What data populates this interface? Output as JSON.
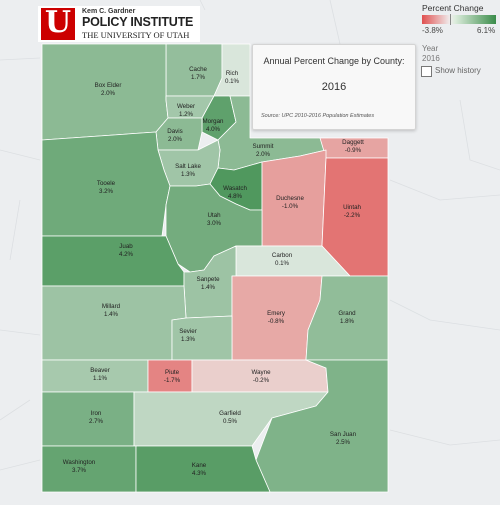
{
  "logo": {
    "line1": "Kem C. Gardner",
    "line2": "POLICY INSTITUTE",
    "line3": "THE UNIVERSITY OF UTAH",
    "emblem_letter": "U",
    "brand_color": "#cc0000"
  },
  "info_box": {
    "title": "Annual Percent Change by County:",
    "year": "2016",
    "source": "Source: UPC 2010-2016 Population Estimates"
  },
  "legend": {
    "title": "Percent Change",
    "min_label": "-3.8%",
    "max_label": "6.1%",
    "min_color": "#e05050",
    "max_color": "#3a8c4a",
    "year_label": "Year",
    "year_value": "2016",
    "show_history_label": "Show history"
  },
  "chart_data": {
    "type": "choropleth",
    "title": "Annual Percent Change by County:",
    "subtitle": "2016",
    "range": [
      -3.8,
      6.1
    ],
    "regions": [
      {
        "name": "Cache",
        "value": "1.7%",
        "v": 1.7
      },
      {
        "name": "Rich",
        "value": "0.1%",
        "v": 0.1
      },
      {
        "name": "Box Elder",
        "value": "2.0%",
        "v": 2.0
      },
      {
        "name": "Weber",
        "value": "1.2%",
        "v": 1.2
      },
      {
        "name": "Morgan",
        "value": "4.0%",
        "v": 4.0
      },
      {
        "name": "Davis",
        "value": "2.0%",
        "v": 2.0
      },
      {
        "name": "Summit",
        "value": "2.0%",
        "v": 2.0
      },
      {
        "name": "Daggett",
        "value": "-0.9%",
        "v": -0.9
      },
      {
        "name": "Salt Lake",
        "value": "1.3%",
        "v": 1.3
      },
      {
        "name": "Tooele",
        "value": "3.2%",
        "v": 3.2
      },
      {
        "name": "Wasatch",
        "value": "4.8%",
        "v": 4.8
      },
      {
        "name": "Duchesne",
        "value": "-1.0%",
        "v": -1.0
      },
      {
        "name": "Uintah",
        "value": "-2.2%",
        "v": -2.2
      },
      {
        "name": "Utah",
        "value": "3.0%",
        "v": 3.0
      },
      {
        "name": "Juab",
        "value": "4.2%",
        "v": 4.2
      },
      {
        "name": "Carbon",
        "value": "0.1%",
        "v": 0.1
      },
      {
        "name": "Sanpete",
        "value": "1.4%",
        "v": 1.4
      },
      {
        "name": "Millard",
        "value": "1.4%",
        "v": 1.4
      },
      {
        "name": "Emery",
        "value": "-0.8%",
        "v": -0.8
      },
      {
        "name": "Grand",
        "value": "1.8%",
        "v": 1.8
      },
      {
        "name": "Sevier",
        "value": "1.3%",
        "v": 1.3
      },
      {
        "name": "Beaver",
        "value": "1.1%",
        "v": 1.1
      },
      {
        "name": "Piute",
        "value": "-1.7%",
        "v": -1.7
      },
      {
        "name": "Wayne",
        "value": "-0.2%",
        "v": -0.2
      },
      {
        "name": "Iron",
        "value": "2.7%",
        "v": 2.7
      },
      {
        "name": "Garfield",
        "value": "0.5%",
        "v": 0.5
      },
      {
        "name": "San Juan",
        "value": "2.5%",
        "v": 2.5
      },
      {
        "name": "Washington",
        "value": "3.7%",
        "v": 3.7
      },
      {
        "name": "Kane",
        "value": "4.3%",
        "v": 4.3
      }
    ]
  }
}
